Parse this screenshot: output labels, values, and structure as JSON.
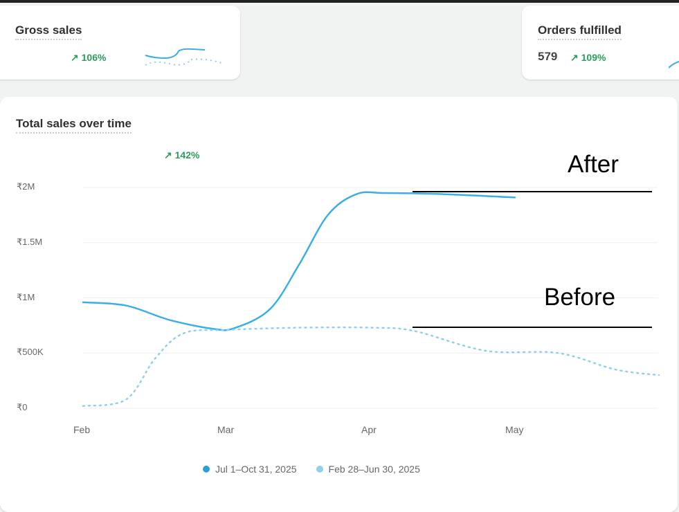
{
  "cards": {
    "gross_sales": {
      "title": "Gross sales",
      "change": "106%"
    },
    "orders_fulfilled": {
      "title": "Orders fulfilled",
      "value": "579",
      "change": "109%"
    }
  },
  "main": {
    "title": "Total sales over time",
    "change": "142%"
  },
  "annotations": {
    "after": "After",
    "before": "Before"
  },
  "colors": {
    "current": "#3aaee6",
    "previous": "#8dd0f2",
    "positive": "#2a9d5c"
  },
  "chart_data": {
    "type": "line",
    "title": "Total sales over time",
    "x_ticks": [
      "Feb",
      "Mar",
      "Apr",
      "May"
    ],
    "y_ticks": [
      "₹0",
      "₹500K",
      "₹1M",
      "₹1.5M",
      "₹2M"
    ],
    "ylim": [
      0,
      2000000
    ],
    "xlim": [
      0,
      4
    ],
    "legend_position": "bottom",
    "series": [
      {
        "name": "Jul 1–Oct 31, 2025",
        "style": "solid",
        "x": [
          0,
          0.3,
          0.6,
          0.9,
          1.05,
          1.3,
          1.5,
          1.7,
          1.9,
          2.1,
          2.5,
          3.0
        ],
        "y": [
          960000,
          930000,
          800000,
          720000,
          725000,
          900000,
          1300000,
          1750000,
          1940000,
          1950000,
          1940000,
          1910000
        ]
      },
      {
        "name": "Feb 28–Jun 30, 2025",
        "style": "dotted",
        "x": [
          0,
          0.3,
          0.5,
          0.7,
          1.0,
          1.5,
          2.0,
          2.3,
          2.8,
          3.3,
          3.7,
          4.0
        ],
        "y": [
          20000,
          80000,
          450000,
          680000,
          710000,
          730000,
          730000,
          700000,
          520000,
          500000,
          350000,
          300000
        ]
      }
    ]
  }
}
